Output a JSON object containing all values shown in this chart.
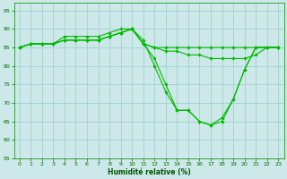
{
  "xlabel": "Humidité relative (%)",
  "xlim": [
    -0.5,
    23.5
  ],
  "ylim": [
    55,
    97
  ],
  "yticks": [
    55,
    60,
    65,
    70,
    75,
    80,
    85,
    90,
    95
  ],
  "xticks": [
    0,
    1,
    2,
    3,
    4,
    5,
    6,
    7,
    8,
    9,
    10,
    11,
    12,
    13,
    14,
    15,
    16,
    17,
    18,
    19,
    20,
    21,
    22,
    23
  ],
  "background_color": "#cce8e8",
  "grid_color": "#99cccc",
  "line_color": "#00bb00",
  "series": [
    [
      85,
      86,
      86,
      86,
      88,
      88,
      88,
      88,
      89,
      90,
      90,
      87,
      80,
      73,
      68,
      68,
      65,
      64,
      65,
      71,
      79,
      85,
      85,
      85
    ],
    [
      85,
      86,
      86,
      86,
      87,
      87,
      87,
      87,
      88,
      89,
      90,
      86,
      82,
      75,
      68,
      68,
      65,
      64,
      66,
      71,
      79,
      85,
      85,
      85
    ],
    [
      85,
      86,
      86,
      86,
      87,
      87,
      87,
      87,
      88,
      89,
      90,
      86,
      85,
      84,
      84,
      83,
      83,
      82,
      82,
      82,
      82,
      83,
      85,
      85
    ],
    [
      85,
      86,
      86,
      86,
      87,
      87,
      87,
      87,
      88,
      89,
      90,
      86,
      85,
      85,
      85,
      85,
      85,
      85,
      85,
      85,
      85,
      85,
      85,
      85
    ]
  ],
  "marker_indices": {
    "0": [
      0,
      1,
      2,
      3,
      4,
      5,
      6,
      7,
      8,
      9,
      10,
      11,
      12,
      13,
      14,
      15,
      16,
      17,
      18,
      19,
      20,
      21,
      22,
      23
    ],
    "1": [
      0,
      1,
      2,
      3,
      4,
      5,
      6,
      7,
      8,
      9,
      10,
      11,
      12,
      13,
      14,
      15,
      16,
      17,
      18,
      19,
      20,
      21,
      22,
      23
    ],
    "2": [
      0,
      4,
      5,
      6,
      7,
      8,
      9,
      10,
      11,
      12,
      13,
      14,
      15,
      16,
      17,
      18,
      19,
      20,
      21,
      22,
      23
    ],
    "3": []
  }
}
